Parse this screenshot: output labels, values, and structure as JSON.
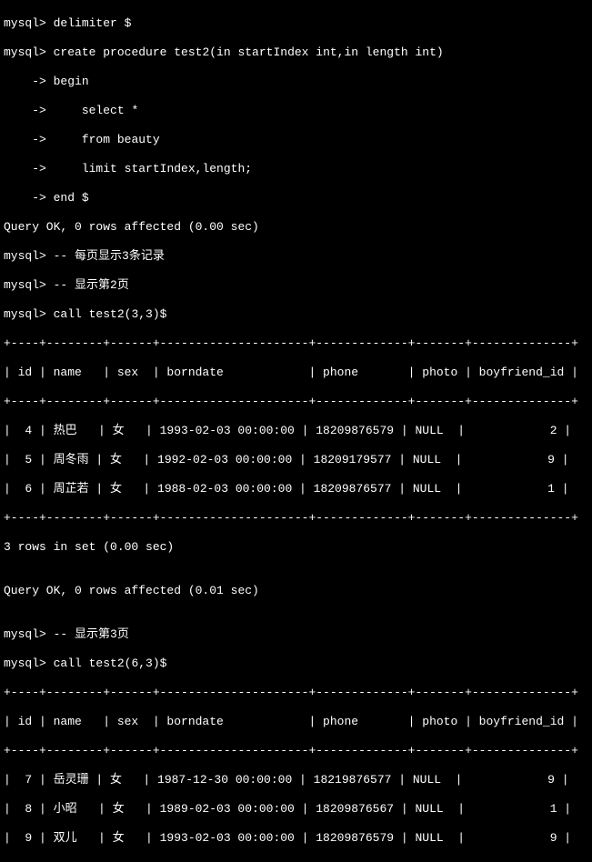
{
  "prompt": "mysql>",
  "cont": "    ->",
  "cmds": {
    "delimiter": "delimiter $",
    "create": "create procedure test2(in startIndex int,in length int)",
    "begin": "begin",
    "s1": "    select *",
    "s2": "    from beauty",
    "s3": "    limit startIndex,length;",
    "end": "end $",
    "cmt1": "-- 每页显示3条记录",
    "cmt2": "-- 显示第2页",
    "call1": "call test2(3,3)$",
    "cmt3": "-- 显示第3页",
    "call2": "call test2(6,3)$"
  },
  "msgs": {
    "ok0": "Query OK, 0 rows affected (0.00 sec)",
    "rows3": "3 rows in set (0.00 sec)",
    "ok1": "Query OK, 0 rows affected (0.01 sec)"
  },
  "border": "+----+--------+------+---------------------+-------------+-------+--------------+",
  "hdr": "| id | name   | sex  | borndate            | phone       | photo | boyfriend_id |",
  "t1": [
    "|  4 | 热巴   | 女   | 1993-02-03 00:00:00 | 18209876579 | NULL  |            2 |",
    "|  5 | 周冬雨 | 女   | 1992-02-03 00:00:00 | 18209179577 | NULL  |            9 |",
    "|  6 | 周芷若 | 女   | 1988-02-03 00:00:00 | 18209876577 | NULL  |            1 |"
  ],
  "t2": [
    "|  7 | 岳灵珊 | 女   | 1987-12-30 00:00:00 | 18219876577 | NULL  |            9 |",
    "|  8 | 小昭   | 女   | 1989-02-03 00:00:00 | 18209876567 | NULL  |            1 |",
    "|  9 | 双儿   | 女   | 1993-02-03 00:00:00 | 18209876579 | NULL  |            9 |"
  ],
  "blank": ""
}
